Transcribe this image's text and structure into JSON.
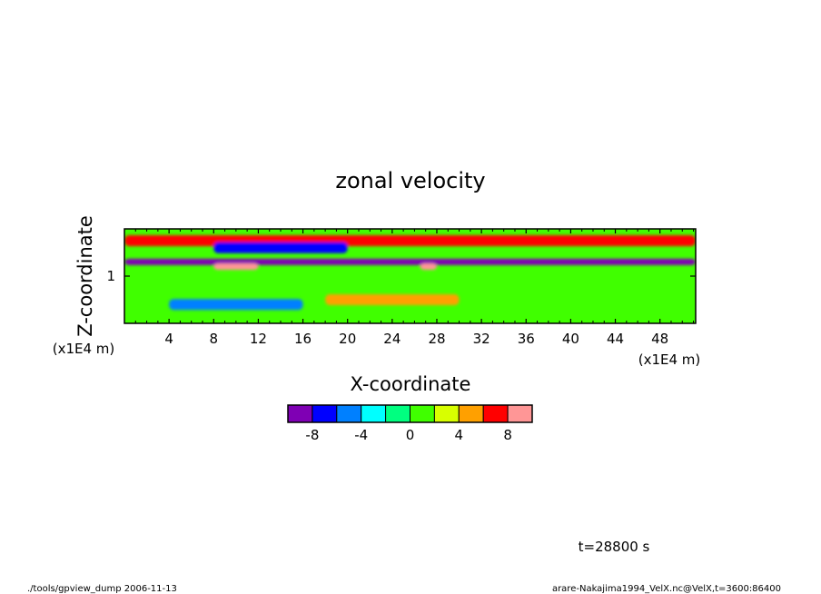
{
  "chart_data": {
    "type": "heatmap",
    "title": "zonal velocity",
    "xlabel": "X-coordinate",
    "ylabel": "Z-coordinate",
    "x_unit": "(x1E4 m)",
    "y_unit": "(x1E4 m)",
    "xlim": [
      0,
      51.2
    ],
    "ylim": [
      0,
      2.0
    ],
    "x_ticks": [
      "4",
      "8",
      "12",
      "16",
      "20",
      "24",
      "28",
      "32",
      "36",
      "40",
      "44",
      "48"
    ],
    "x_tick_values": [
      4,
      8,
      12,
      16,
      20,
      24,
      28,
      32,
      36,
      40,
      44,
      48
    ],
    "y_ticks": [
      "1"
    ],
    "y_tick_values": [
      1
    ],
    "colorbar": {
      "levels": [
        -10,
        -8,
        -6,
        -4,
        -2,
        0,
        2,
        4,
        6,
        8,
        10
      ],
      "colors": [
        "#7f00b4",
        "#0000ff",
        "#0080ff",
        "#00ffff",
        "#00ff80",
        "#40ff00",
        "#d8ff00",
        "#ffa000",
        "#ff0000",
        "#ff9696"
      ],
      "tick_labels": [
        "-8",
        "-4",
        "0",
        "4",
        "8"
      ],
      "tick_values": [
        -8,
        -4,
        0,
        4,
        8
      ]
    },
    "features": [
      {
        "z": 1.75,
        "x_range": [
          0,
          51.2
        ],
        "value": 6,
        "desc": "upper red/orange band"
      },
      {
        "z": 1.6,
        "x_range": [
          8,
          20
        ],
        "value": -8,
        "desc": "upper blue band"
      },
      {
        "z": 1.3,
        "x_range": [
          0,
          51.2
        ],
        "value": -10,
        "desc": "strong negative jet"
      },
      {
        "z": 1.2,
        "x_range": [
          8,
          12
        ],
        "value": 10,
        "desc": "positive core"
      },
      {
        "z": 1.2,
        "x_range": [
          26.5,
          28
        ],
        "value": 10,
        "desc": "positive core near x=27"
      },
      {
        "z": 0.5,
        "x_range": [
          18,
          30
        ],
        "value": 4,
        "desc": "lower orange region"
      },
      {
        "z": 0.4,
        "x_range": [
          4,
          16
        ],
        "value": -6,
        "desc": "lower blue region"
      }
    ]
  },
  "annotation_time": "t=28800 s",
  "footer_left": "./tools/gpview_dump  2006-11-13",
  "footer_right": "arare-Nakajima1994_VelX.nc@VelX,t=3600:86400"
}
